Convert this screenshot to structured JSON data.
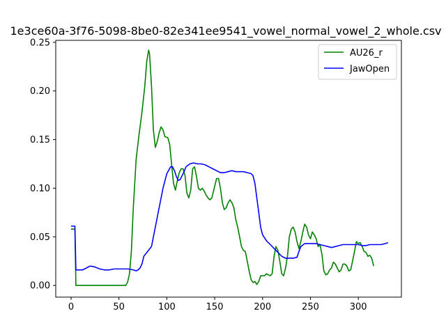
{
  "chart_data": {
    "type": "line",
    "title": "1e3ce60a-3f76-5098-8be0-82e341ee9541_vowel_normal_vowel_2_whole.csv",
    "xlabel": "",
    "ylabel": "",
    "xlim": [
      -16,
      345
    ],
    "ylim": [
      -0.012,
      0.252
    ],
    "xticks": [
      0,
      50,
      100,
      150,
      200,
      250,
      300
    ],
    "yticks": [
      0.0,
      0.05,
      0.1,
      0.15,
      0.2,
      0.25
    ],
    "ytick_labels": [
      "0.00",
      "0.05",
      "0.10",
      "0.15",
      "0.20",
      "0.25"
    ],
    "grid": false,
    "legend_position": "upper right",
    "series": [
      {
        "name": "AU26_r",
        "color": "#008000",
        "points": [
          [
            0,
            0.058
          ],
          [
            4,
            0.058
          ],
          [
            5,
            0.0
          ],
          [
            10,
            0.0
          ],
          [
            20,
            0.0
          ],
          [
            30,
            0.0
          ],
          [
            40,
            0.0
          ],
          [
            50,
            0.0
          ],
          [
            57,
            0.0
          ],
          [
            59,
            0.003
          ],
          [
            61,
            0.012
          ],
          [
            63,
            0.035
          ],
          [
            65,
            0.08
          ],
          [
            68,
            0.13
          ],
          [
            71,
            0.155
          ],
          [
            74,
            0.178
          ],
          [
            77,
            0.205
          ],
          [
            79,
            0.23
          ],
          [
            81,
            0.242
          ],
          [
            82,
            0.238
          ],
          [
            84,
            0.205
          ],
          [
            86,
            0.16
          ],
          [
            88,
            0.142
          ],
          [
            90,
            0.148
          ],
          [
            92,
            0.157
          ],
          [
            94,
            0.163
          ],
          [
            96,
            0.16
          ],
          [
            98,
            0.153
          ],
          [
            101,
            0.152
          ],
          [
            103,
            0.145
          ],
          [
            105,
            0.125
          ],
          [
            107,
            0.105
          ],
          [
            109,
            0.098
          ],
          [
            111,
            0.108
          ],
          [
            113,
            0.116
          ],
          [
            115,
            0.12
          ],
          [
            117,
            0.12
          ],
          [
            119,
            0.113
          ],
          [
            121,
            0.095
          ],
          [
            123,
            0.09
          ],
          [
            125,
            0.098
          ],
          [
            127,
            0.12
          ],
          [
            129,
            0.122
          ],
          [
            131,
            0.112
          ],
          [
            133,
            0.1
          ],
          [
            135,
            0.098
          ],
          [
            137,
            0.1
          ],
          [
            139,
            0.097
          ],
          [
            141,
            0.093
          ],
          [
            143,
            0.09
          ],
          [
            145,
            0.088
          ],
          [
            147,
            0.09
          ],
          [
            149,
            0.098
          ],
          [
            152,
            0.11
          ],
          [
            154,
            0.11
          ],
          [
            156,
            0.1
          ],
          [
            158,
            0.085
          ],
          [
            160,
            0.078
          ],
          [
            162,
            0.08
          ],
          [
            164,
            0.085
          ],
          [
            166,
            0.088
          ],
          [
            168,
            0.085
          ],
          [
            170,
            0.08
          ],
          [
            172,
            0.068
          ],
          [
            174,
            0.06
          ],
          [
            176,
            0.05
          ],
          [
            178,
            0.04
          ],
          [
            180,
            0.036
          ],
          [
            182,
            0.035
          ],
          [
            184,
            0.025
          ],
          [
            186,
            0.015
          ],
          [
            188,
            0.006
          ],
          [
            190,
            0.003
          ],
          [
            192,
            0.004
          ],
          [
            194,
            0.001
          ],
          [
            196,
            0.004
          ],
          [
            198,
            0.01
          ],
          [
            200,
            0.01
          ],
          [
            202,
            0.01
          ],
          [
            204,
            0.012
          ],
          [
            206,
            0.011
          ],
          [
            208,
            0.01
          ],
          [
            210,
            0.012
          ],
          [
            212,
            0.03
          ],
          [
            214,
            0.04
          ],
          [
            216,
            0.036
          ],
          [
            218,
            0.025
          ],
          [
            220,
            0.012
          ],
          [
            222,
            0.01
          ],
          [
            224,
            0.018
          ],
          [
            226,
            0.03
          ],
          [
            228,
            0.05
          ],
          [
            230,
            0.058
          ],
          [
            232,
            0.06
          ],
          [
            234,
            0.055
          ],
          [
            236,
            0.045
          ],
          [
            238,
            0.038
          ],
          [
            240,
            0.045
          ],
          [
            242,
            0.055
          ],
          [
            244,
            0.063
          ],
          [
            246,
            0.06
          ],
          [
            248,
            0.052
          ],
          [
            250,
            0.048
          ],
          [
            252,
            0.055
          ],
          [
            254,
            0.052
          ],
          [
            256,
            0.048
          ],
          [
            258,
            0.04
          ],
          [
            260,
            0.042
          ],
          [
            262,
            0.032
          ],
          [
            264,
            0.015
          ],
          [
            266,
            0.011
          ],
          [
            268,
            0.012
          ],
          [
            270,
            0.016
          ],
          [
            272,
            0.018
          ],
          [
            274,
            0.024
          ],
          [
            276,
            0.022
          ],
          [
            278,
            0.018
          ],
          [
            280,
            0.014
          ],
          [
            282,
            0.016
          ],
          [
            284,
            0.022
          ],
          [
            286,
            0.022
          ],
          [
            288,
            0.02
          ],
          [
            290,
            0.015
          ],
          [
            292,
            0.016
          ],
          [
            294,
            0.025
          ],
          [
            296,
            0.035
          ],
          [
            298,
            0.045
          ],
          [
            300,
            0.043
          ],
          [
            302,
            0.044
          ],
          [
            304,
            0.04
          ],
          [
            306,
            0.035
          ],
          [
            308,
            0.034
          ],
          [
            310,
            0.03
          ],
          [
            312,
            0.031
          ],
          [
            314,
            0.028
          ],
          [
            316,
            0.02
          ]
        ]
      },
      {
        "name": "JawOpen",
        "color": "#0000ff",
        "points": [
          [
            0,
            0.061
          ],
          [
            4,
            0.061
          ],
          [
            5,
            0.016
          ],
          [
            8,
            0.016
          ],
          [
            12,
            0.016
          ],
          [
            16,
            0.018
          ],
          [
            20,
            0.02
          ],
          [
            25,
            0.019
          ],
          [
            30,
            0.017
          ],
          [
            35,
            0.016
          ],
          [
            40,
            0.016
          ],
          [
            45,
            0.017
          ],
          [
            50,
            0.017
          ],
          [
            55,
            0.017
          ],
          [
            60,
            0.017
          ],
          [
            65,
            0.016
          ],
          [
            68,
            0.015
          ],
          [
            70,
            0.016
          ],
          [
            72,
            0.018
          ],
          [
            74,
            0.022
          ],
          [
            76,
            0.03
          ],
          [
            80,
            0.035
          ],
          [
            84,
            0.04
          ],
          [
            88,
            0.06
          ],
          [
            92,
            0.08
          ],
          [
            96,
            0.1
          ],
          [
            100,
            0.115
          ],
          [
            104,
            0.122
          ],
          [
            106,
            0.122
          ],
          [
            108,
            0.118
          ],
          [
            110,
            0.112
          ],
          [
            112,
            0.108
          ],
          [
            114,
            0.109
          ],
          [
            116,
            0.113
          ],
          [
            118,
            0.117
          ],
          [
            120,
            0.122
          ],
          [
            124,
            0.125
          ],
          [
            128,
            0.126
          ],
          [
            132,
            0.125
          ],
          [
            136,
            0.125
          ],
          [
            140,
            0.124
          ],
          [
            144,
            0.122
          ],
          [
            148,
            0.12
          ],
          [
            152,
            0.118
          ],
          [
            156,
            0.116
          ],
          [
            160,
            0.116
          ],
          [
            164,
            0.117
          ],
          [
            168,
            0.118
          ],
          [
            172,
            0.117
          ],
          [
            176,
            0.117
          ],
          [
            180,
            0.117
          ],
          [
            184,
            0.116
          ],
          [
            188,
            0.115
          ],
          [
            190,
            0.113
          ],
          [
            192,
            0.105
          ],
          [
            194,
            0.09
          ],
          [
            196,
            0.075
          ],
          [
            198,
            0.06
          ],
          [
            200,
            0.052
          ],
          [
            204,
            0.046
          ],
          [
            208,
            0.042
          ],
          [
            212,
            0.038
          ],
          [
            216,
            0.034
          ],
          [
            220,
            0.03
          ],
          [
            224,
            0.028
          ],
          [
            228,
            0.028
          ],
          [
            232,
            0.028
          ],
          [
            236,
            0.029
          ],
          [
            238,
            0.035
          ],
          [
            240,
            0.04
          ],
          [
            244,
            0.043
          ],
          [
            248,
            0.043
          ],
          [
            252,
            0.043
          ],
          [
            256,
            0.043
          ],
          [
            260,
            0.042
          ],
          [
            264,
            0.041
          ],
          [
            268,
            0.04
          ],
          [
            272,
            0.039
          ],
          [
            276,
            0.04
          ],
          [
            280,
            0.041
          ],
          [
            284,
            0.042
          ],
          [
            288,
            0.042
          ],
          [
            292,
            0.042
          ],
          [
            296,
            0.042
          ],
          [
            300,
            0.042
          ],
          [
            304,
            0.041
          ],
          [
            308,
            0.041
          ],
          [
            312,
            0.042
          ],
          [
            316,
            0.042
          ],
          [
            320,
            0.042
          ],
          [
            324,
            0.042
          ],
          [
            328,
            0.043
          ],
          [
            331,
            0.044
          ]
        ]
      }
    ]
  }
}
